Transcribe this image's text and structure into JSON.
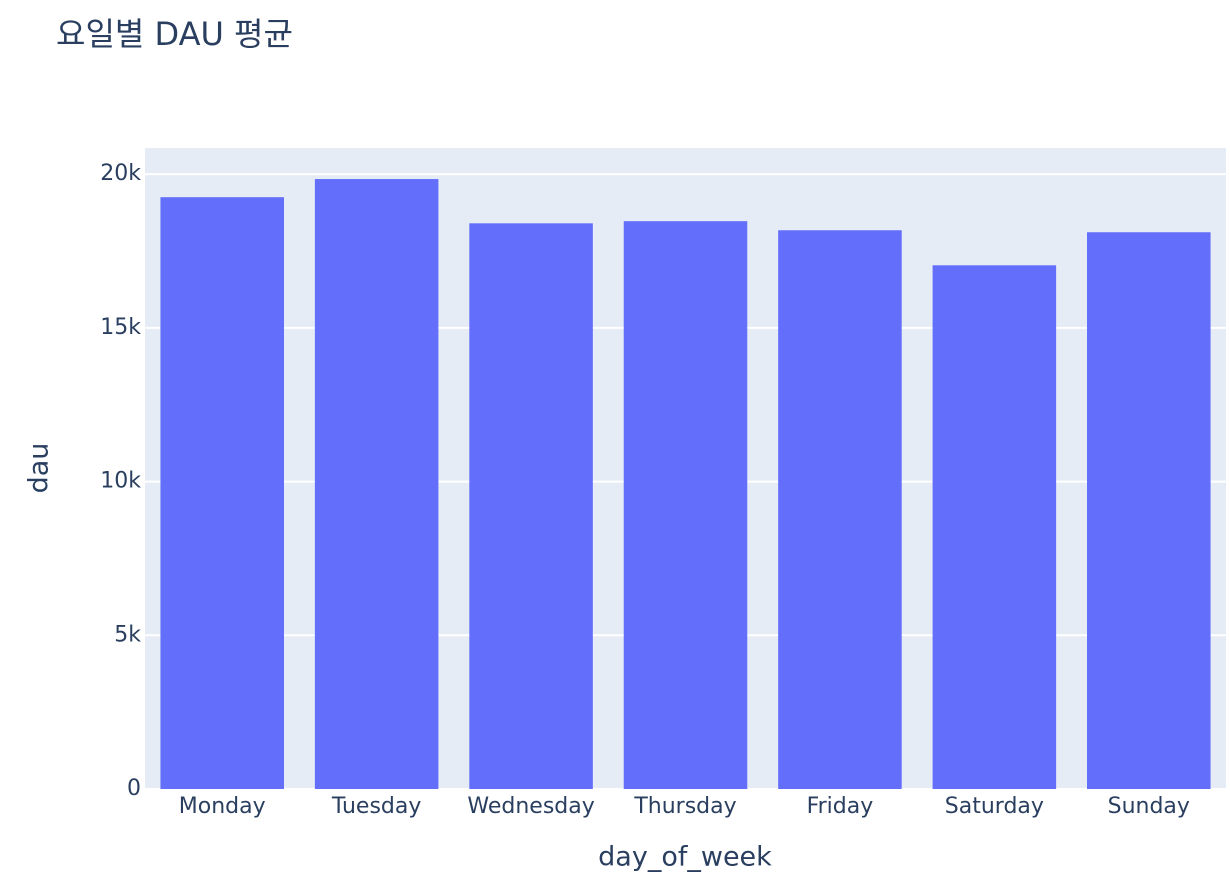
{
  "chart_data": {
    "type": "bar",
    "title": "요일별 DAU 평균",
    "x_label": "day_of_week",
    "y_label": "dau",
    "categories": [
      "Monday",
      "Tuesday",
      "Wednesday",
      "Thursday",
      "Friday",
      "Saturday",
      "Sunday"
    ],
    "values": [
      19250,
      19840,
      18400,
      18470,
      18175,
      17035,
      18110
    ],
    "color": "#636efa",
    "ylim": [
      0,
      20850
    ],
    "yticks": [
      0,
      {
        "value": 5000,
        "label": "5k"
      },
      {
        "value": 10000,
        "label": "10k"
      },
      {
        "value": 15000,
        "label": "15k"
      },
      {
        "value": 20000,
        "label": "20k"
      }
    ],
    "grid": true
  }
}
